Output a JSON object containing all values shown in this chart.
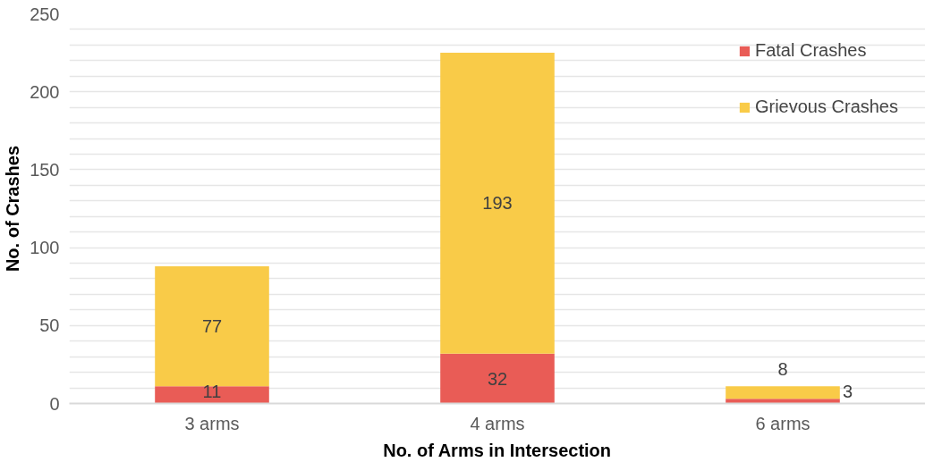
{
  "chart_data": {
    "type": "bar",
    "stacked": true,
    "xlabel": "No. of Arms in Intersection",
    "ylabel": "No. of Crashes",
    "categories": [
      "3 arms",
      "4 arms",
      "6 arms"
    ],
    "series": [
      {
        "name": "Fatal Crashes",
        "color": "#e95c56",
        "values": [
          11,
          32,
          3
        ]
      },
      {
        "name": "Grievous Crashes",
        "color": "#f9cb48",
        "values": [
          77,
          193,
          8
        ]
      }
    ],
    "ylim": [
      0,
      250
    ],
    "yticks": [
      0,
      {
        "value": 10,
        "label": null
      },
      {
        "value": 20,
        "label": null
      },
      {
        "value": 30,
        "label": null
      },
      {
        "value": 40,
        "label": null
      },
      50,
      {
        "value": 60,
        "label": null
      },
      {
        "value": 70,
        "label": null
      },
      {
        "value": 80,
        "label": null
      },
      {
        "value": 90,
        "label": null
      },
      100,
      {
        "value": 110,
        "label": null
      },
      {
        "value": 120,
        "label": null
      },
      {
        "value": 130,
        "label": null
      },
      {
        "value": 140,
        "label": null
      },
      150,
      {
        "value": 160,
        "label": null
      },
      {
        "value": 170,
        "label": null
      },
      {
        "value": 180,
        "label": null
      },
      {
        "value": 190,
        "label": null
      },
      200,
      {
        "value": 210,
        "label": null
      },
      {
        "value": 220,
        "label": null
      },
      {
        "value": 230,
        "label": null
      },
      {
        "value": 240,
        "label": null
      },
      250
    ],
    "grid": "y",
    "legend": "top right",
    "data_labels": true
  }
}
